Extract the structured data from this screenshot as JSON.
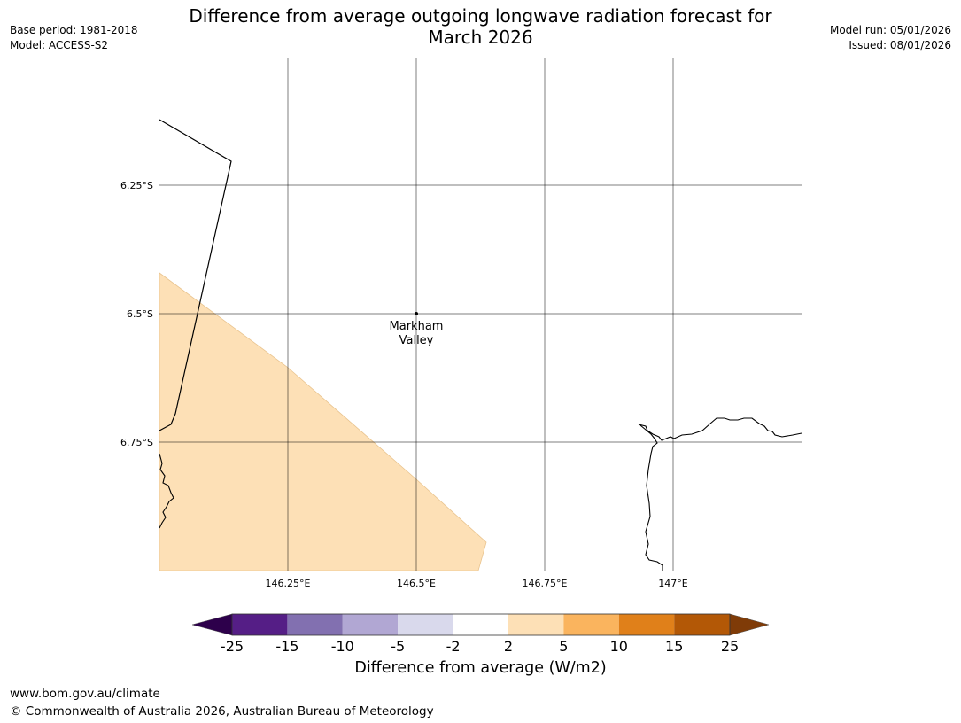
{
  "header": {
    "title_line1": "Difference from average outgoing longwave radiation forecast for",
    "title_line2": "March 2026",
    "base_period": "Base period: 1981-2018",
    "model": "Model: ACCESS-S2",
    "model_run": "Model run: 05/01/2026",
    "issued": "Issued: 08/01/2026"
  },
  "map": {
    "lat_labels": [
      "6.25°S",
      "6.5°S",
      "6.75°S"
    ],
    "lon_labels": [
      "146.25°E",
      "146.5°E",
      "146.75°E",
      "147°E"
    ],
    "location": {
      "name_line1": "Markham",
      "name_line2": "Valley",
      "lon": 146.5,
      "lat": -6.5
    },
    "shaded_category": "2 to 5",
    "shade_color": "#fde0b6"
  },
  "colorbar": {
    "title": "Difference from average (W/m2)",
    "tick_labels": [
      "-25",
      "-15",
      "-10",
      "-5",
      "-2",
      "2",
      "5",
      "10",
      "15",
      "25"
    ],
    "colors": [
      "#551e86",
      "#8270b0",
      "#b1a7d3",
      "#d9d9ec",
      "#ffffff",
      "#fde0b6",
      "#fab45e",
      "#e0801a",
      "#b35806"
    ],
    "extend_low_color": "#2d004b",
    "extend_high_color": "#7f3b08"
  },
  "footer": {
    "url": "www.bom.gov.au/climate",
    "copyright": "© Commonwealth of Australia 2026, Australian Bureau of Meteorology"
  }
}
